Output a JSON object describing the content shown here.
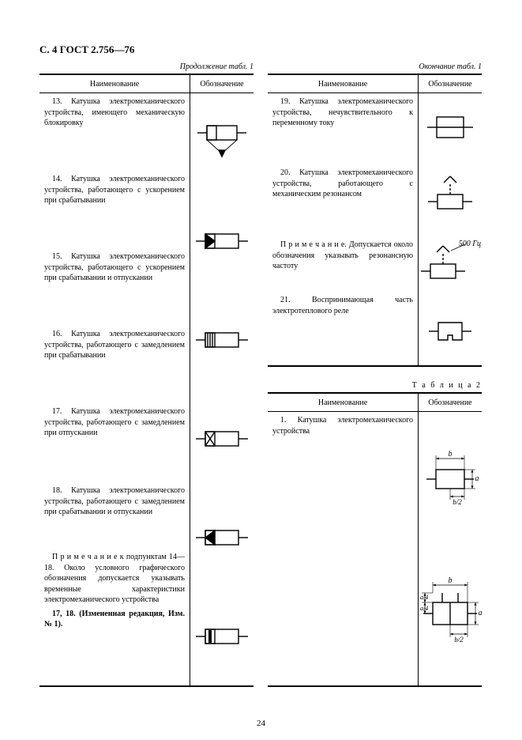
{
  "header": "С. 4  ГОСТ 2.756—76",
  "pagenum": "24",
  "left": {
    "caption": "Продолжение табл. 1",
    "h_name": "Наименование",
    "h_sym": "Обозначение",
    "rows": [
      "13. Катушка электромеханического устройства, имеющего механическую блокировку",
      "14. Катушка электромеханического устройства, работающего с ускорением при срабатывании",
      "15. Катушка электромеханического устройства, работающего с ускорением при срабатывании и отпускании",
      "16. Катушка электромеханического устройства, работающего с замедлением при срабатывании",
      "17. Катушка электромеханического устройства, работающего с замедлением при отпускании",
      "18. Катушка электромеханического устройства, работающего с замедлением при срабатывании и отпускании"
    ],
    "note": "П р и м е ч а н и е  к  подпунктам  14—18. Около условного графического обозначения допускается указывать временные характеристики электромеханического устройства",
    "change": "17, 18. (Измененная редакция, Изм. № 1)."
  },
  "right": {
    "caption": "Окончание табл. 1",
    "h_name": "Наименование",
    "h_sym": "Обозначение",
    "rows": [
      "19. Катушка электромеханического устройства, нечувствительного к переменному току",
      "20. Катушка электромеханического устройства, работающего с механическим резонансом"
    ],
    "note20": "П р и м е ч а н и е.  Допускается около обозначения указывать резонансную частоту",
    "row21": "21. Воспринимающая часть электротеплового реле",
    "freq_label": "500 Гц",
    "table2_label": "Т а б л и ц а  2",
    "t2_h_name": "Наименование",
    "t2_h_sym": "Обозначение",
    "t2_row": "1. Катушка электромеханического устройства",
    "dims": {
      "a": "a",
      "a4": "a/4",
      "b": "b",
      "b2": "b/2"
    }
  },
  "svg": {
    "stroke": "#000000",
    "sw": 1.4,
    "coil_w": 44,
    "coil_h": 18
  }
}
